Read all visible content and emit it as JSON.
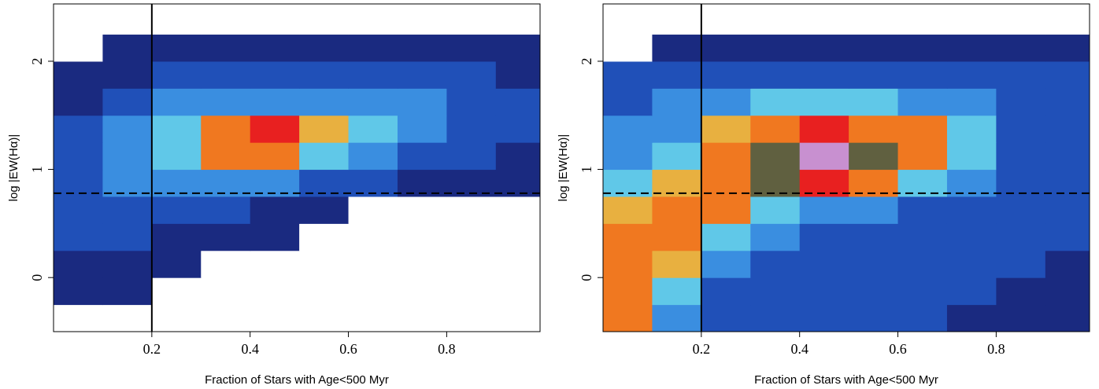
{
  "chart_data": [
    {
      "type": "heatmap",
      "x_label": "Fraction of Stars with Age<500 Myr",
      "y_label": "log |EW(Hα)|",
      "xlim": [
        0,
        0.99
      ],
      "ylim": [
        -0.5,
        2.53
      ],
      "xticks": [
        0.2,
        0.4,
        0.6,
        0.8
      ],
      "yticks": [
        0,
        1,
        2
      ],
      "x_bins": [
        0,
        0.1,
        0.2,
        0.3,
        0.4,
        0.5,
        0.6,
        0.7,
        0.8,
        0.9,
        1.0
      ],
      "y_bins": [
        -0.5,
        -0.25,
        0,
        0.25,
        0.5,
        0.75,
        1.0,
        1.25,
        1.5,
        1.75,
        2.0,
        2.25,
        2.5
      ],
      "density": [
        [
          0,
          0,
          0,
          0,
          0,
          0,
          0,
          0,
          0,
          0
        ],
        [
          1,
          1,
          0,
          0,
          0,
          0,
          0,
          0,
          0,
          0
        ],
        [
          1,
          1,
          1,
          0,
          0,
          0,
          0,
          0,
          0,
          0
        ],
        [
          2,
          2,
          1,
          1,
          1,
          0,
          0,
          0,
          0,
          0
        ],
        [
          2,
          2,
          2,
          2,
          1,
          1,
          0,
          0,
          0,
          0
        ],
        [
          2,
          3,
          3,
          3,
          3,
          2,
          2,
          1,
          1,
          1
        ],
        [
          2,
          3,
          4,
          6,
          6,
          4,
          3,
          2,
          2,
          1
        ],
        [
          2,
          3,
          4,
          6,
          7,
          5,
          4,
          3,
          2,
          2
        ],
        [
          1,
          2,
          3,
          3,
          3,
          3,
          3,
          3,
          2,
          2
        ],
        [
          1,
          1,
          2,
          2,
          2,
          2,
          2,
          2,
          2,
          1
        ],
        [
          0,
          1,
          1,
          1,
          1,
          1,
          1,
          1,
          1,
          1
        ],
        [
          0,
          0,
          0,
          0,
          0,
          0,
          0,
          0,
          0,
          0
        ]
      ],
      "colors": [
        "#ffffff",
        "#1a2a80",
        "#2050b8",
        "#3a8ee0",
        "#60c8e8",
        "#e8b040",
        "#f07820",
        "#e82020",
        "#606040",
        "#c890d0"
      ],
      "vline": 0.2,
      "hline": 0.78
    },
    {
      "type": "heatmap",
      "x_label": "Fraction of Stars with Age<500 Myr",
      "y_label": "log |EW(Hα)|",
      "xlim": [
        0,
        0.99
      ],
      "ylim": [
        -0.5,
        2.53
      ],
      "xticks": [
        0.2,
        0.4,
        0.6,
        0.8
      ],
      "yticks": [
        0,
        1,
        2
      ],
      "x_bins": [
        0,
        0.1,
        0.2,
        0.3,
        0.4,
        0.5,
        0.6,
        0.7,
        0.8,
        0.9,
        1.0
      ],
      "y_bins": [
        -0.5,
        -0.25,
        0,
        0.25,
        0.5,
        0.75,
        1.0,
        1.25,
        1.5,
        1.75,
        2.0,
        2.25,
        2.5
      ],
      "density": [
        [
          6,
          3,
          2,
          2,
          2,
          2,
          2,
          1,
          1,
          1
        ],
        [
          6,
          4,
          2,
          2,
          2,
          2,
          2,
          2,
          1,
          1
        ],
        [
          6,
          5,
          3,
          2,
          2,
          2,
          2,
          2,
          2,
          1
        ],
        [
          6,
          6,
          4,
          3,
          2,
          2,
          2,
          2,
          2,
          2
        ],
        [
          5,
          6,
          6,
          4,
          3,
          3,
          2,
          2,
          2,
          2
        ],
        [
          4,
          5,
          6,
          8,
          7,
          6,
          4,
          3,
          2,
          2
        ],
        [
          3,
          4,
          6,
          8,
          9,
          8,
          6,
          4,
          2,
          2
        ],
        [
          3,
          3,
          5,
          6,
          7,
          6,
          6,
          4,
          2,
          2
        ],
        [
          2,
          3,
          3,
          4,
          4,
          4,
          3,
          3,
          2,
          2
        ],
        [
          2,
          2,
          2,
          2,
          2,
          2,
          2,
          2,
          2,
          2
        ],
        [
          0,
          1,
          1,
          1,
          1,
          1,
          1,
          1,
          1,
          1
        ],
        [
          0,
          0,
          0,
          0,
          0,
          0,
          0,
          0,
          0,
          0
        ]
      ],
      "colors": [
        "#ffffff",
        "#1a2a80",
        "#2050b8",
        "#3a8ee0",
        "#60c8e8",
        "#e8b040",
        "#f07820",
        "#e82020",
        "#606040",
        "#c890d0"
      ],
      "vline": 0.2,
      "hline": 0.78
    }
  ]
}
